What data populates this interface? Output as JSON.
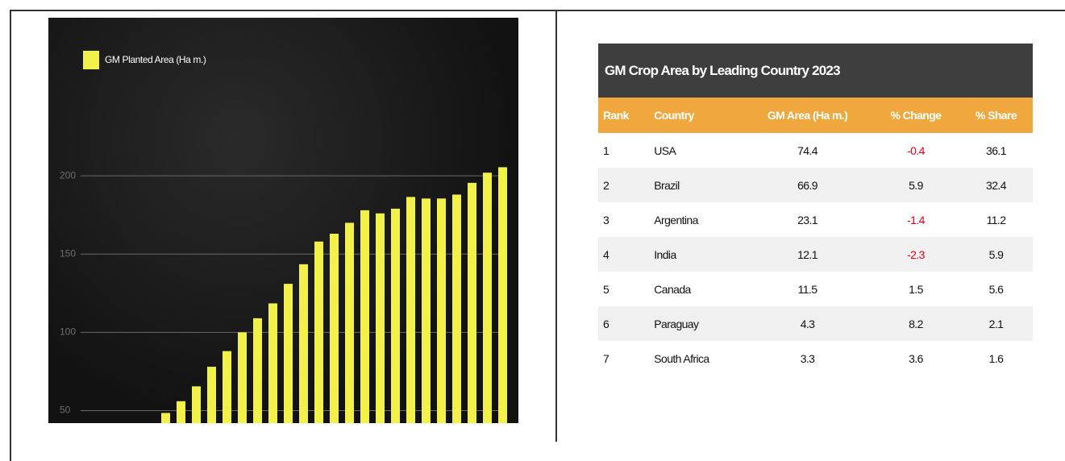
{
  "chart_data": {
    "type": "bar",
    "legend": "GM Planted Area (Ha m.)",
    "categories": [
      null,
      null,
      null,
      null,
      null,
      null,
      null,
      null,
      null,
      null,
      null,
      null,
      null,
      null,
      null,
      null,
      null,
      null,
      null,
      null,
      null,
      null,
      null
    ],
    "values": [
      48.5,
      56,
      65.5,
      78,
      88,
      100,
      109,
      118.5,
      131,
      143.5,
      158,
      163,
      170,
      178,
      176,
      179,
      186.5,
      185.5,
      185.5,
      188,
      195.5,
      202,
      205.5
    ],
    "color": "#f1f14a",
    "ylim": [
      42,
      301
    ],
    "yticks": [
      50,
      100,
      150,
      200
    ],
    "grid": true
  },
  "table": {
    "title": "GM Crop Area by Leading Country 2023",
    "columns": [
      "Rank",
      "Country",
      "GM Area (Ha m.)",
      "% Change",
      "% Share"
    ],
    "rows": [
      [
        1,
        "USA",
        74.4,
        -0.4,
        36.1
      ],
      [
        2,
        "Brazil",
        66.9,
        5.9,
        32.4
      ],
      [
        3,
        "Argentina",
        23.1,
        -1.4,
        11.2
      ],
      [
        4,
        "India",
        12.1,
        -2.3,
        5.9
      ],
      [
        5,
        "Canada",
        11.5,
        1.5,
        5.6
      ],
      [
        6,
        "Paraguay",
        4.3,
        8.2,
        2.1
      ],
      [
        7,
        "South Africa",
        3.3,
        3.6,
        1.6
      ]
    ]
  }
}
